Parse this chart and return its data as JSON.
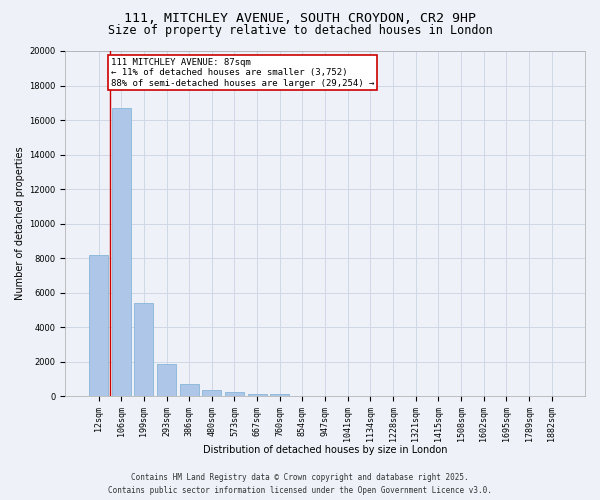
{
  "title_line1": "111, MITCHLEY AVENUE, SOUTH CROYDON, CR2 9HP",
  "title_line2": "Size of property relative to detached houses in London",
  "xlabel": "Distribution of detached houses by size in London",
  "ylabel": "Number of detached properties",
  "categories": [
    "12sqm",
    "106sqm",
    "199sqm",
    "293sqm",
    "386sqm",
    "480sqm",
    "573sqm",
    "667sqm",
    "760sqm",
    "854sqm",
    "947sqm",
    "1041sqm",
    "1134sqm",
    "1228sqm",
    "1321sqm",
    "1415sqm",
    "1508sqm",
    "1602sqm",
    "1695sqm",
    "1789sqm",
    "1882sqm"
  ],
  "values": [
    8200,
    16700,
    5400,
    1850,
    680,
    380,
    220,
    150,
    120,
    0,
    0,
    0,
    0,
    0,
    0,
    0,
    0,
    0,
    0,
    0,
    0
  ],
  "bar_color": "#aec6e8",
  "bar_edge_color": "#7aafd4",
  "grid_color": "#d0d8e8",
  "background_color": "#eef2f8",
  "annotation_text": "111 MITCHLEY AVENUE: 87sqm\n← 11% of detached houses are smaller (3,752)\n88% of semi-detached houses are larger (29,254) →",
  "annotation_box_color": "#ffffff",
  "annotation_border_color": "#cc0000",
  "marker_line_color": "#cc0000",
  "ylim": [
    0,
    20000
  ],
  "yticks": [
    0,
    2000,
    4000,
    6000,
    8000,
    10000,
    12000,
    14000,
    16000,
    18000,
    20000
  ],
  "footer_line1": "Contains HM Land Registry data © Crown copyright and database right 2025.",
  "footer_line2": "Contains public sector information licensed under the Open Government Licence v3.0.",
  "title_fontsize": 9.5,
  "subtitle_fontsize": 8.5,
  "axis_label_fontsize": 7,
  "tick_fontsize": 6,
  "annotation_fontsize": 6.5,
  "footer_fontsize": 5.5
}
